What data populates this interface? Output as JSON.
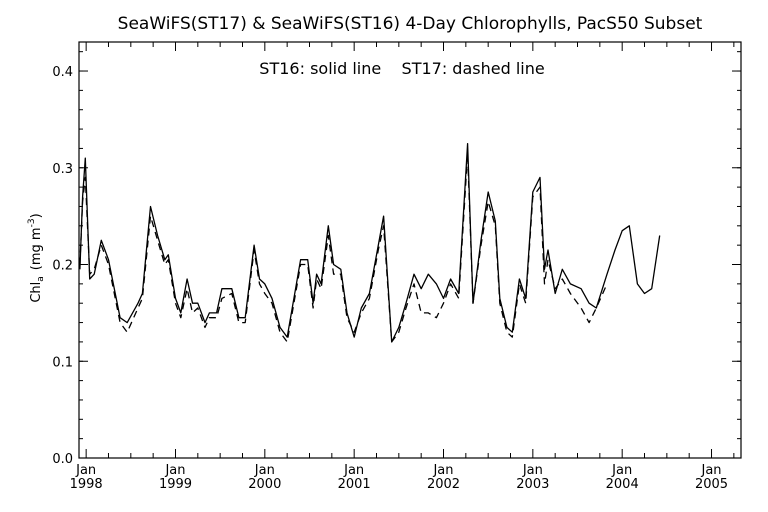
{
  "chart_data": {
    "type": "line",
    "title": "SeaWiFS(ST17) & SeaWiFS(ST16) 4-Day Chlorophylls, PacS50 Subset",
    "annotation": "ST16: solid line    ST17: dashed line",
    "ylabel": {
      "main": "Chl",
      "sub": "a",
      "unit": "(mg m",
      "sup": "-3",
      "close": ")"
    },
    "ylim": [
      0.0,
      0.43
    ],
    "xlim": [
      1997.92,
      2005.33
    ],
    "yticks": [
      "0.0",
      "0.1",
      "0.2",
      "0.3",
      "0.4"
    ],
    "xticks": [
      {
        "month": "Jan",
        "year": "1998"
      },
      {
        "month": "Jan",
        "year": "1999"
      },
      {
        "month": "Jan",
        "year": "2000"
      },
      {
        "month": "Jan",
        "year": "2001"
      },
      {
        "month": "Jan",
        "year": "2002"
      },
      {
        "month": "Jan",
        "year": "2003"
      },
      {
        "month": "Jan",
        "year": "2004"
      },
      {
        "month": "Jan",
        "year": "2005"
      }
    ],
    "grid": false,
    "series": [
      {
        "name": "ST16",
        "style": "solid",
        "points": [
          [
            1997.93,
            0.195
          ],
          [
            1997.96,
            0.27
          ],
          [
            1997.99,
            0.31
          ],
          [
            1998.04,
            0.185
          ],
          [
            1998.09,
            0.19
          ],
          [
            1998.17,
            0.225
          ],
          [
            1998.25,
            0.205
          ],
          [
            1998.38,
            0.145
          ],
          [
            1998.46,
            0.14
          ],
          [
            1998.58,
            0.16
          ],
          [
            1998.63,
            0.17
          ],
          [
            1998.72,
            0.26
          ],
          [
            1998.8,
            0.23
          ],
          [
            1998.88,
            0.205
          ],
          [
            1998.92,
            0.21
          ],
          [
            1999.0,
            0.165
          ],
          [
            1999.06,
            0.15
          ],
          [
            1999.13,
            0.185
          ],
          [
            1999.19,
            0.16
          ],
          [
            1999.25,
            0.16
          ],
          [
            1999.33,
            0.14
          ],
          [
            1999.38,
            0.15
          ],
          [
            1999.46,
            0.15
          ],
          [
            1999.52,
            0.175
          ],
          [
            1999.63,
            0.175
          ],
          [
            1999.71,
            0.145
          ],
          [
            1999.78,
            0.145
          ],
          [
            1999.88,
            0.22
          ],
          [
            1999.94,
            0.185
          ],
          [
            2000.0,
            0.18
          ],
          [
            2000.08,
            0.165
          ],
          [
            2000.17,
            0.135
          ],
          [
            2000.25,
            0.125
          ],
          [
            2000.4,
            0.205
          ],
          [
            2000.48,
            0.205
          ],
          [
            2000.54,
            0.16
          ],
          [
            2000.58,
            0.19
          ],
          [
            2000.63,
            0.18
          ],
          [
            2000.71,
            0.24
          ],
          [
            2000.77,
            0.2
          ],
          [
            2000.85,
            0.195
          ],
          [
            2000.92,
            0.15
          ],
          [
            2001.0,
            0.125
          ],
          [
            2001.08,
            0.155
          ],
          [
            2001.17,
            0.17
          ],
          [
            2001.27,
            0.22
          ],
          [
            2001.33,
            0.25
          ],
          [
            2001.42,
            0.12
          ],
          [
            2001.5,
            0.135
          ],
          [
            2001.58,
            0.16
          ],
          [
            2001.67,
            0.19
          ],
          [
            2001.75,
            0.175
          ],
          [
            2001.83,
            0.19
          ],
          [
            2001.92,
            0.18
          ],
          [
            2002.0,
            0.165
          ],
          [
            2002.08,
            0.185
          ],
          [
            2002.17,
            0.17
          ],
          [
            2002.27,
            0.325
          ],
          [
            2002.33,
            0.16
          ],
          [
            2002.42,
            0.225
          ],
          [
            2002.5,
            0.275
          ],
          [
            2002.58,
            0.245
          ],
          [
            2002.63,
            0.165
          ],
          [
            2002.71,
            0.135
          ],
          [
            2002.77,
            0.13
          ],
          [
            2002.85,
            0.185
          ],
          [
            2002.92,
            0.165
          ],
          [
            2003.0,
            0.275
          ],
          [
            2003.08,
            0.29
          ],
          [
            2003.13,
            0.195
          ],
          [
            2003.17,
            0.215
          ],
          [
            2003.25,
            0.17
          ],
          [
            2003.33,
            0.195
          ],
          [
            2003.42,
            0.18
          ],
          [
            2003.54,
            0.175
          ],
          [
            2003.63,
            0.16
          ],
          [
            2003.71,
            0.155
          ],
          [
            2003.83,
            0.19
          ],
          [
            2003.92,
            0.215
          ],
          [
            2004.0,
            0.235
          ],
          [
            2004.08,
            0.24
          ],
          [
            2004.17,
            0.18
          ],
          [
            2004.25,
            0.17
          ],
          [
            2004.33,
            0.175
          ],
          [
            2004.42,
            0.23
          ]
        ]
      },
      {
        "name": "ST17",
        "style": "dashed",
        "points": [
          [
            1997.93,
            0.2
          ],
          [
            1997.96,
            0.265
          ],
          [
            1997.99,
            0.29
          ],
          [
            1998.04,
            0.19
          ],
          [
            1998.09,
            0.195
          ],
          [
            1998.17,
            0.22
          ],
          [
            1998.25,
            0.2
          ],
          [
            1998.38,
            0.14
          ],
          [
            1998.46,
            0.13
          ],
          [
            1998.58,
            0.155
          ],
          [
            1998.63,
            0.165
          ],
          [
            1998.72,
            0.25
          ],
          [
            1998.8,
            0.225
          ],
          [
            1998.88,
            0.2
          ],
          [
            1998.92,
            0.205
          ],
          [
            1999.0,
            0.16
          ],
          [
            1999.06,
            0.145
          ],
          [
            1999.13,
            0.175
          ],
          [
            1999.19,
            0.15
          ],
          [
            1999.25,
            0.155
          ],
          [
            1999.33,
            0.135
          ],
          [
            1999.38,
            0.145
          ],
          [
            1999.46,
            0.145
          ],
          [
            1999.52,
            0.165
          ],
          [
            1999.63,
            0.17
          ],
          [
            1999.71,
            0.14
          ],
          [
            1999.78,
            0.14
          ],
          [
            1999.88,
            0.215
          ],
          [
            1999.94,
            0.18
          ],
          [
            2000.0,
            0.17
          ],
          [
            2000.08,
            0.16
          ],
          [
            2000.17,
            0.13
          ],
          [
            2000.25,
            0.12
          ],
          [
            2000.4,
            0.2
          ],
          [
            2000.48,
            0.2
          ],
          [
            2000.54,
            0.155
          ],
          [
            2000.58,
            0.185
          ],
          [
            2000.63,
            0.175
          ],
          [
            2000.71,
            0.23
          ],
          [
            2000.77,
            0.19
          ],
          [
            2000.85,
            0.19
          ],
          [
            2000.92,
            0.145
          ],
          [
            2001.0,
            0.13
          ],
          [
            2001.08,
            0.15
          ],
          [
            2001.17,
            0.165
          ],
          [
            2001.27,
            0.215
          ],
          [
            2001.33,
            0.24
          ],
          [
            2001.42,
            0.12
          ],
          [
            2001.5,
            0.13
          ],
          [
            2001.58,
            0.155
          ],
          [
            2001.67,
            0.18
          ],
          [
            2001.75,
            0.15
          ],
          [
            2001.83,
            0.15
          ],
          [
            2001.92,
            0.145
          ],
          [
            2002.0,
            0.16
          ],
          [
            2002.08,
            0.18
          ],
          [
            2002.17,
            0.165
          ],
          [
            2002.27,
            0.315
          ],
          [
            2002.33,
            0.16
          ],
          [
            2002.42,
            0.22
          ],
          [
            2002.5,
            0.265
          ],
          [
            2002.58,
            0.24
          ],
          [
            2002.63,
            0.16
          ],
          [
            2002.71,
            0.13
          ],
          [
            2002.77,
            0.125
          ],
          [
            2002.85,
            0.18
          ],
          [
            2002.92,
            0.16
          ],
          [
            2003.0,
            0.27
          ],
          [
            2003.08,
            0.28
          ],
          [
            2003.13,
            0.18
          ],
          [
            2003.17,
            0.205
          ],
          [
            2003.25,
            0.175
          ],
          [
            2003.33,
            0.185
          ],
          [
            2003.42,
            0.17
          ],
          [
            2003.54,
            0.155
          ],
          [
            2003.63,
            0.14
          ],
          [
            2003.71,
            0.155
          ],
          [
            2003.83,
            0.18
          ]
        ]
      }
    ]
  }
}
